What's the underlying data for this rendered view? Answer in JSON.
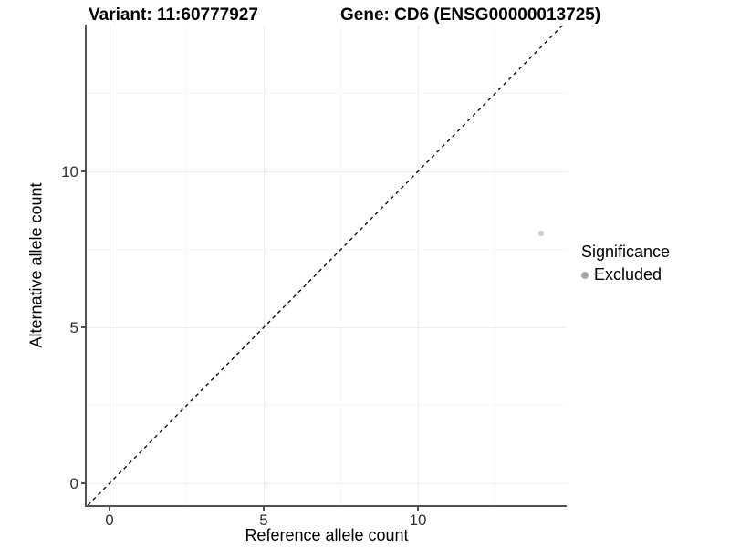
{
  "chart_data": {
    "type": "scatter",
    "titles": {
      "left": "Variant: 11:60777927",
      "right": "Gene: CD6 (ENSG00000013725)"
    },
    "xlabel": "Reference allele count",
    "ylabel": "Alternative allele count",
    "xlim": [
      -0.74,
      14.82
    ],
    "ylim": [
      -0.7,
      14.68
    ],
    "xticks": [
      0,
      5,
      10
    ],
    "yticks": [
      0,
      5,
      10
    ],
    "grid": {
      "major": [
        0,
        5,
        10
      ],
      "minor": [
        2.5,
        7.5,
        12.5
      ],
      "major_color": "#ededed",
      "minor_color": "#f6f6f6"
    },
    "identity_line": {
      "slope": 1,
      "intercept": 0,
      "style": "dashed",
      "color": "#000000"
    },
    "points": [
      {
        "x": 14,
        "y": 8,
        "significance": "Excluded"
      }
    ],
    "point_color": "#c9c9c9",
    "point_radius": 3,
    "legend": {
      "title": "Significance",
      "position": "right",
      "items": [
        {
          "label": "Excluded",
          "color": "#a8a8a8"
        }
      ]
    },
    "axis_color": "#515151",
    "tick_label_color": "#303030"
  }
}
